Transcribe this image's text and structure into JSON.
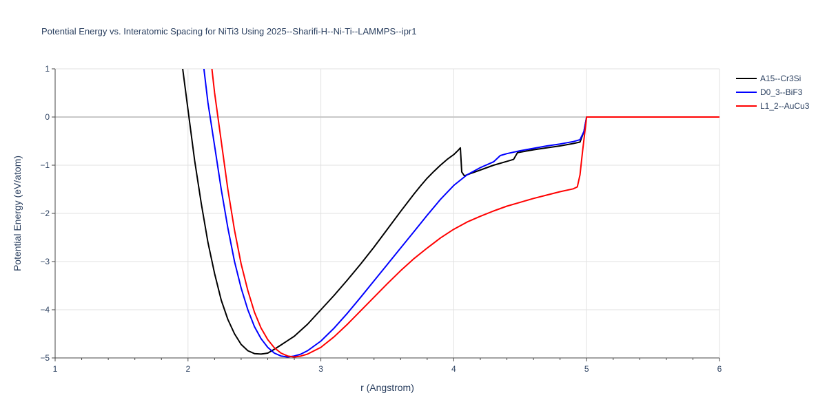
{
  "chart_data": {
    "type": "line",
    "title": "Potential Energy vs. Interatomic Spacing for NiTi3 Using 2025--Sharifi-H--Ni-Ti--LAMMPS--ipr1",
    "xlabel": "r (Angstrom)",
    "ylabel": "Potential Energy (eV/atom)",
    "xlim": [
      1,
      6
    ],
    "ylim": [
      -5,
      1
    ],
    "xticks": [
      "1",
      "2",
      "3",
      "4",
      "5",
      "6"
    ],
    "yticks": [
      "1",
      "0",
      "−1",
      "−2",
      "−3",
      "−4",
      "−5"
    ],
    "grid": true,
    "legend_position": "top-right",
    "series": [
      {
        "name": "A15--Cr3Si",
        "color": "#000000",
        "points": [
          [
            1.96,
            1.0
          ],
          [
            2.0,
            0.15
          ],
          [
            2.05,
            -0.9
          ],
          [
            2.1,
            -1.8
          ],
          [
            2.15,
            -2.6
          ],
          [
            2.2,
            -3.25
          ],
          [
            2.25,
            -3.8
          ],
          [
            2.3,
            -4.2
          ],
          [
            2.35,
            -4.5
          ],
          [
            2.4,
            -4.72
          ],
          [
            2.45,
            -4.85
          ],
          [
            2.5,
            -4.91
          ],
          [
            2.55,
            -4.92
          ],
          [
            2.6,
            -4.9
          ],
          [
            2.65,
            -4.82
          ],
          [
            2.7,
            -4.73
          ],
          [
            2.75,
            -4.64
          ],
          [
            2.8,
            -4.55
          ],
          [
            2.9,
            -4.3
          ],
          [
            3.0,
            -4.0
          ],
          [
            3.1,
            -3.7
          ],
          [
            3.2,
            -3.38
          ],
          [
            3.3,
            -3.05
          ],
          [
            3.4,
            -2.7
          ],
          [
            3.5,
            -2.33
          ],
          [
            3.6,
            -1.96
          ],
          [
            3.7,
            -1.6
          ],
          [
            3.75,
            -1.43
          ],
          [
            3.8,
            -1.27
          ],
          [
            3.85,
            -1.13
          ],
          [
            3.9,
            -1.0
          ],
          [
            3.95,
            -0.88
          ],
          [
            4.0,
            -0.78
          ],
          [
            4.03,
            -0.7
          ],
          [
            4.05,
            -0.64
          ],
          [
            4.06,
            -1.14
          ],
          [
            4.08,
            -1.22
          ],
          [
            4.12,
            -1.18
          ],
          [
            4.2,
            -1.1
          ],
          [
            4.3,
            -1.0
          ],
          [
            4.4,
            -0.92
          ],
          [
            4.45,
            -0.88
          ],
          [
            4.48,
            -0.74
          ],
          [
            4.6,
            -0.68
          ],
          [
            4.7,
            -0.64
          ],
          [
            4.8,
            -0.6
          ],
          [
            4.9,
            -0.55
          ],
          [
            4.95,
            -0.52
          ],
          [
            4.98,
            -0.3
          ],
          [
            5.0,
            0.0
          ],
          [
            6.0,
            0.0
          ]
        ]
      },
      {
        "name": "D0_3--BiF3",
        "color": "#0000ff",
        "points": [
          [
            2.12,
            1.0
          ],
          [
            2.15,
            0.3
          ],
          [
            2.2,
            -0.6
          ],
          [
            2.25,
            -1.5
          ],
          [
            2.3,
            -2.3
          ],
          [
            2.35,
            -3.0
          ],
          [
            2.4,
            -3.55
          ],
          [
            2.45,
            -4.0
          ],
          [
            2.5,
            -4.35
          ],
          [
            2.55,
            -4.6
          ],
          [
            2.6,
            -4.78
          ],
          [
            2.65,
            -4.9
          ],
          [
            2.7,
            -4.96
          ],
          [
            2.75,
            -4.98
          ],
          [
            2.8,
            -4.96
          ],
          [
            2.85,
            -4.92
          ],
          [
            2.9,
            -4.85
          ],
          [
            3.0,
            -4.65
          ],
          [
            3.1,
            -4.38
          ],
          [
            3.2,
            -4.07
          ],
          [
            3.3,
            -3.74
          ],
          [
            3.4,
            -3.4
          ],
          [
            3.5,
            -3.06
          ],
          [
            3.6,
            -2.72
          ],
          [
            3.7,
            -2.38
          ],
          [
            3.8,
            -2.04
          ],
          [
            3.9,
            -1.71
          ],
          [
            4.0,
            -1.42
          ],
          [
            4.1,
            -1.2
          ],
          [
            4.2,
            -1.05
          ],
          [
            4.3,
            -0.93
          ],
          [
            4.35,
            -0.8
          ],
          [
            4.4,
            -0.76
          ],
          [
            4.5,
            -0.7
          ],
          [
            4.6,
            -0.65
          ],
          [
            4.7,
            -0.6
          ],
          [
            4.8,
            -0.56
          ],
          [
            4.9,
            -0.51
          ],
          [
            4.95,
            -0.47
          ],
          [
            4.98,
            -0.3
          ],
          [
            5.0,
            0.0
          ],
          [
            6.0,
            0.0
          ]
        ]
      },
      {
        "name": "L1_2--AuCu3",
        "color": "#ff0000",
        "points": [
          [
            2.18,
            1.0
          ],
          [
            2.2,
            0.5
          ],
          [
            2.25,
            -0.5
          ],
          [
            2.3,
            -1.5
          ],
          [
            2.35,
            -2.35
          ],
          [
            2.4,
            -3.05
          ],
          [
            2.45,
            -3.6
          ],
          [
            2.5,
            -4.05
          ],
          [
            2.55,
            -4.38
          ],
          [
            2.6,
            -4.62
          ],
          [
            2.65,
            -4.79
          ],
          [
            2.7,
            -4.9
          ],
          [
            2.75,
            -4.96
          ],
          [
            2.8,
            -4.98
          ],
          [
            2.85,
            -4.96
          ],
          [
            2.9,
            -4.92
          ],
          [
            3.0,
            -4.78
          ],
          [
            3.1,
            -4.56
          ],
          [
            3.2,
            -4.3
          ],
          [
            3.3,
            -4.02
          ],
          [
            3.4,
            -3.74
          ],
          [
            3.5,
            -3.46
          ],
          [
            3.6,
            -3.19
          ],
          [
            3.7,
            -2.94
          ],
          [
            3.8,
            -2.72
          ],
          [
            3.9,
            -2.51
          ],
          [
            4.0,
            -2.33
          ],
          [
            4.1,
            -2.18
          ],
          [
            4.2,
            -2.06
          ],
          [
            4.3,
            -1.95
          ],
          [
            4.4,
            -1.85
          ],
          [
            4.5,
            -1.77
          ],
          [
            4.6,
            -1.69
          ],
          [
            4.7,
            -1.62
          ],
          [
            4.8,
            -1.55
          ],
          [
            4.9,
            -1.49
          ],
          [
            4.93,
            -1.45
          ],
          [
            4.95,
            -1.2
          ],
          [
            4.97,
            -0.7
          ],
          [
            5.0,
            0.0
          ],
          [
            6.0,
            0.0
          ]
        ]
      }
    ]
  }
}
